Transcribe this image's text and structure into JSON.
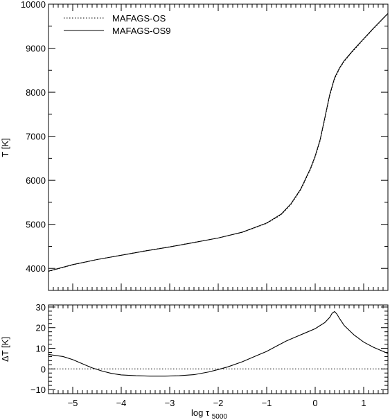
{
  "chart_data": [
    {
      "type": "line",
      "title": "",
      "xlabel": "",
      "ylabel": "T [K]",
      "xlim": [
        -5.5,
        1.5
      ],
      "ylim": [
        3500,
        10000
      ],
      "grid": false,
      "legend_position": "top-left",
      "x_ticks": [
        -5,
        -4,
        -3,
        -2,
        -1,
        0,
        1
      ],
      "y_ticks": [
        4000,
        5000,
        6000,
        7000,
        8000,
        9000,
        10000
      ],
      "series": [
        {
          "name": "MAFAGS-OS",
          "style": "dotted",
          "x": [
            -5.5,
            -5.0,
            -4.5,
            -4.0,
            -3.5,
            -3.0,
            -2.5,
            -2.0,
            -1.5,
            -1.0,
            -0.7,
            -0.5,
            -0.3,
            -0.1,
            0.0,
            0.1,
            0.2,
            0.3,
            0.4,
            0.5,
            0.6,
            0.8,
            1.0,
            1.2,
            1.5
          ],
          "y": [
            3930,
            4080,
            4200,
            4300,
            4400,
            4490,
            4590,
            4690,
            4820,
            5020,
            5220,
            5450,
            5780,
            6240,
            6530,
            6890,
            7400,
            7920,
            8300,
            8530,
            8700,
            8960,
            9200,
            9440,
            9780
          ]
        },
        {
          "name": "MAFAGS-OS9",
          "style": "solid",
          "x": [
            -5.5,
            -5.0,
            -4.5,
            -4.0,
            -3.5,
            -3.0,
            -2.5,
            -2.0,
            -1.5,
            -1.0,
            -0.7,
            -0.5,
            -0.3,
            -0.1,
            0.0,
            0.1,
            0.2,
            0.3,
            0.4,
            0.5,
            0.6,
            0.8,
            1.0,
            1.2,
            1.5
          ],
          "y": [
            3937,
            4085,
            4200,
            4298,
            4396,
            4487,
            4587,
            4690,
            4823,
            5030,
            5234,
            5467,
            5799,
            6262,
            6552,
            6914,
            7425,
            7946,
            8327,
            8548,
            8718,
            8975,
            9213,
            9451,
            9790
          ]
        }
      ]
    },
    {
      "type": "line",
      "title": "",
      "xlabel": "log τ",
      "xlabel_subscript": "5000",
      "ylabel": "ΔT [K]",
      "xlim": [
        -5.5,
        1.5
      ],
      "ylim": [
        -12,
        31
      ],
      "grid": false,
      "x_ticks": [
        -5,
        -4,
        -3,
        -2,
        -1,
        0,
        1
      ],
      "y_ticks": [
        -10,
        0,
        10,
        20,
        30
      ],
      "series": [
        {
          "name": "",
          "style": "solid",
          "x": [
            -5.5,
            -5.2,
            -5.0,
            -4.8,
            -4.6,
            -4.4,
            -4.2,
            -4.0,
            -3.7,
            -3.4,
            -3.1,
            -2.8,
            -2.5,
            -2.2,
            -2.0,
            -1.8,
            -1.5,
            -1.2,
            -1.0,
            -0.8,
            -0.6,
            -0.4,
            -0.2,
            0.0,
            0.1,
            0.2,
            0.3,
            0.35,
            0.4,
            0.45,
            0.5,
            0.6,
            0.8,
            1.0,
            1.2,
            1.5
          ],
          "y": [
            7,
            6,
            4.5,
            2.5,
            0.5,
            -1,
            -2.2,
            -2.9,
            -3.3,
            -3.5,
            -3.5,
            -3.3,
            -2.8,
            -1.5,
            -0.3,
            1,
            3.5,
            6.5,
            8.5,
            11,
            13.5,
            15.5,
            17.5,
            19.5,
            21,
            22.5,
            25,
            27,
            27.8,
            26.5,
            24.5,
            21,
            16.5,
            13,
            10.5,
            7.5
          ]
        },
        {
          "name": "",
          "style": "dotted",
          "x": [
            -5.5,
            1.5
          ],
          "y": [
            0,
            0
          ]
        }
      ]
    }
  ]
}
